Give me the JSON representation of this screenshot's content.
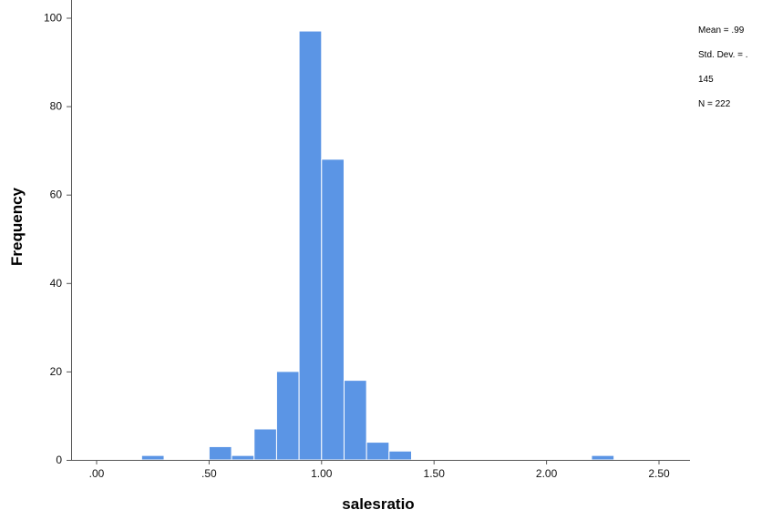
{
  "chart_data": {
    "type": "bar",
    "xlabel": "salesratio",
    "ylabel": "Frequency",
    "bin_width": 0.1,
    "x": [
      0.25,
      0.55,
      0.65,
      0.75,
      0.85,
      0.95,
      1.05,
      1.15,
      1.25,
      1.35,
      2.25
    ],
    "values": [
      1,
      3,
      1,
      7,
      20,
      97,
      68,
      18,
      4,
      2,
      1
    ],
    "xlim": [
      -0.1,
      2.62
    ],
    "ylim": [
      0,
      104
    ],
    "x_ticks": [
      0,
      0.5,
      1.0,
      1.5,
      2.0,
      2.5
    ],
    "x_tick_labels": [
      ".00",
      ".50",
      "1.00",
      "1.50",
      "2.00",
      "2.50"
    ],
    "y_ticks": [
      0,
      20,
      40,
      60,
      80,
      100
    ],
    "y_tick_labels": [
      "0",
      "20",
      "40",
      "60",
      "80",
      "100"
    ],
    "grid": false,
    "bar_color": "#5b95e5",
    "bar_edge_color": "#ffffff",
    "annotation": {
      "lines": [
        "Mean = .99",
        "Std. Dev. = .",
        "145",
        "N = 222"
      ]
    }
  }
}
